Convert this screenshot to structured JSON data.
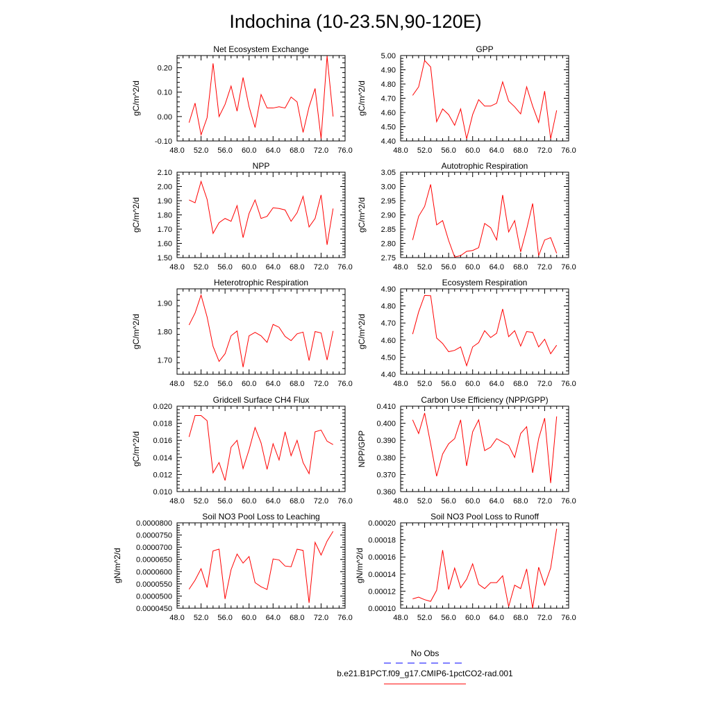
{
  "figure": {
    "title": "Indochina (10-23.5N,90-120E)"
  },
  "legend": {
    "entries": [
      {
        "label": "No Obs",
        "color": "#0000ff",
        "dash": "dashed"
      },
      {
        "label": "b.e21.B1PCT.f09_g17.CMIP6-1pctCO2-rad.001",
        "color": "#ff0000",
        "dash": "solid"
      }
    ]
  },
  "chart_data": [
    {
      "type": "line",
      "title": "Net Ecosystem Exchange",
      "xlabel": "",
      "ylabel": "gC/m^2/d",
      "xlim": [
        48,
        76
      ],
      "ylim": [
        -0.1,
        0.25
      ],
      "xticks": [
        "48.0",
        "52.0",
        "56.0",
        "60.0",
        "64.0",
        "68.0",
        "72.0",
        "76.0"
      ],
      "yticks": [
        "-0.10",
        "0.00",
        "0.10",
        "0.20"
      ],
      "grid": false,
      "series": [
        {
          "color": "#ff0000",
          "x": [
            50,
            51,
            52,
            53,
            54,
            55,
            56,
            57,
            58,
            59,
            60,
            61,
            62,
            63,
            64,
            65,
            66,
            67,
            68,
            69,
            70,
            71,
            72,
            73,
            74
          ],
          "y": [
            -0.025,
            0.055,
            -0.075,
            -0.005,
            0.218,
            0.0,
            0.05,
            0.125,
            0.022,
            0.16,
            0.04,
            -0.045,
            0.09,
            0.035,
            0.035,
            0.04,
            0.035,
            0.08,
            0.06,
            -0.065,
            0.04,
            0.115,
            -0.09,
            0.248,
            0.0
          ]
        }
      ]
    },
    {
      "type": "line",
      "title": "GPP",
      "xlabel": "",
      "ylabel": "gC/m^2/d",
      "xlim": [
        48,
        76
      ],
      "ylim": [
        4.4,
        5.0
      ],
      "xticks": [
        "48.0",
        "52.0",
        "56.0",
        "60.0",
        "64.0",
        "68.0",
        "72.0",
        "76.0"
      ],
      "yticks": [
        "4.40",
        "4.50",
        "4.60",
        "4.70",
        "4.80",
        "4.90",
        "5.00"
      ],
      "grid": false,
      "series": [
        {
          "color": "#ff0000",
          "x": [
            50,
            51,
            52,
            53,
            54,
            55,
            56,
            57,
            58,
            59,
            60,
            61,
            62,
            63,
            64,
            65,
            66,
            67,
            68,
            69,
            70,
            71,
            72,
            73,
            74
          ],
          "y": [
            4.72,
            4.78,
            4.965,
            4.92,
            4.535,
            4.625,
            4.585,
            4.51,
            4.625,
            4.415,
            4.585,
            4.69,
            4.645,
            4.645,
            4.665,
            4.815,
            4.68,
            4.64,
            4.59,
            4.78,
            4.645,
            4.53,
            4.75,
            4.415,
            4.615
          ]
        }
      ]
    },
    {
      "type": "line",
      "title": "NPP",
      "xlabel": "",
      "ylabel": "gC/m^2/d",
      "xlim": [
        48,
        76
      ],
      "ylim": [
        1.5,
        2.1
      ],
      "xticks": [
        "48.0",
        "52.0",
        "56.0",
        "60.0",
        "64.0",
        "68.0",
        "72.0",
        "76.0"
      ],
      "yticks": [
        "1.50",
        "1.60",
        "1.70",
        "1.80",
        "1.90",
        "2.00",
        "2.10"
      ],
      "grid": false,
      "series": [
        {
          "color": "#ff0000",
          "x": [
            50,
            51,
            52,
            53,
            54,
            55,
            56,
            57,
            58,
            59,
            60,
            61,
            62,
            63,
            64,
            65,
            66,
            67,
            68,
            69,
            70,
            71,
            72,
            73,
            74
          ],
          "y": [
            1.905,
            1.885,
            2.035,
            1.91,
            1.67,
            1.745,
            1.775,
            1.755,
            1.865,
            1.64,
            1.81,
            1.905,
            1.775,
            1.79,
            1.85,
            1.845,
            1.835,
            1.755,
            1.815,
            1.93,
            1.715,
            1.775,
            1.94,
            1.59,
            1.845
          ]
        }
      ]
    },
    {
      "type": "line",
      "title": "Autotrophic Respiration",
      "xlabel": "",
      "ylabel": "gC/m^2/d",
      "xlim": [
        48,
        76
      ],
      "ylim": [
        2.75,
        3.05
      ],
      "xticks": [
        "48.0",
        "52.0",
        "56.0",
        "60.0",
        "64.0",
        "68.0",
        "72.0",
        "76.0"
      ],
      "yticks": [
        "2.75",
        "2.80",
        "2.85",
        "2.90",
        "2.95",
        "3.00",
        "3.05"
      ],
      "grid": false,
      "series": [
        {
          "color": "#ff0000",
          "x": [
            50,
            51,
            52,
            53,
            54,
            55,
            56,
            57,
            58,
            59,
            60,
            61,
            62,
            63,
            64,
            65,
            66,
            67,
            68,
            69,
            70,
            71,
            72,
            73,
            74
          ],
          "y": [
            2.812,
            2.895,
            2.93,
            3.007,
            2.865,
            2.88,
            2.81,
            2.752,
            2.757,
            2.772,
            2.775,
            2.785,
            2.87,
            2.855,
            2.812,
            2.97,
            2.84,
            2.88,
            2.77,
            2.85,
            2.94,
            2.757,
            2.812,
            2.82,
            2.765
          ]
        }
      ]
    },
    {
      "type": "line",
      "title": "Heterotrophic Respiration",
      "xlabel": "",
      "ylabel": "gC/m^2/d",
      "xlim": [
        48,
        76
      ],
      "ylim": [
        1.65,
        1.95
      ],
      "xticks": [
        "48.0",
        "52.0",
        "56.0",
        "60.0",
        "64.0",
        "68.0",
        "72.0",
        "76.0"
      ],
      "yticks": [
        "1.70",
        "1.80",
        "1.90"
      ],
      "grid": false,
      "series": [
        {
          "color": "#ff0000",
          "x": [
            50,
            51,
            52,
            53,
            54,
            55,
            56,
            57,
            58,
            59,
            60,
            61,
            62,
            63,
            64,
            65,
            66,
            67,
            68,
            69,
            70,
            71,
            72,
            73,
            74
          ],
          "y": [
            1.823,
            1.865,
            1.928,
            1.852,
            1.748,
            1.695,
            1.722,
            1.785,
            1.802,
            1.675,
            1.785,
            1.797,
            1.785,
            1.762,
            1.825,
            1.815,
            1.783,
            1.768,
            1.792,
            1.798,
            1.698,
            1.8,
            1.795,
            1.7,
            1.802
          ]
        }
      ]
    },
    {
      "type": "line",
      "title": "Ecosystem Respiration",
      "xlabel": "",
      "ylabel": "gC/m^2/d",
      "xlim": [
        48,
        76
      ],
      "ylim": [
        4.4,
        4.9
      ],
      "xticks": [
        "48.0",
        "52.0",
        "56.0",
        "60.0",
        "64.0",
        "68.0",
        "72.0",
        "76.0"
      ],
      "yticks": [
        "4.40",
        "4.50",
        "4.60",
        "4.70",
        "4.80",
        "4.90"
      ],
      "grid": false,
      "series": [
        {
          "color": "#ff0000",
          "x": [
            50,
            51,
            52,
            53,
            54,
            55,
            56,
            57,
            58,
            59,
            60,
            61,
            62,
            63,
            64,
            65,
            66,
            67,
            68,
            69,
            70,
            71,
            72,
            73,
            74
          ],
          "y": [
            4.635,
            4.765,
            4.862,
            4.86,
            4.612,
            4.58,
            4.532,
            4.54,
            4.56,
            4.45,
            4.56,
            4.585,
            4.655,
            4.615,
            4.64,
            4.782,
            4.62,
            4.655,
            4.565,
            4.65,
            4.645,
            4.56,
            4.605,
            4.52,
            4.57
          ]
        }
      ]
    },
    {
      "type": "line",
      "title": "Gridcell Surface CH4 Flux",
      "xlabel": "",
      "ylabel": "gC/m^2/d",
      "xlim": [
        48,
        76
      ],
      "ylim": [
        0.01,
        0.02
      ],
      "xticks": [
        "48.0",
        "52.0",
        "56.0",
        "60.0",
        "64.0",
        "68.0",
        "72.0",
        "76.0"
      ],
      "yticks": [
        "0.010",
        "0.012",
        "0.014",
        "0.016",
        "0.018",
        "0.020"
      ],
      "grid": false,
      "series": [
        {
          "color": "#ff0000",
          "x": [
            50,
            51,
            52,
            53,
            54,
            55,
            56,
            57,
            58,
            59,
            60,
            61,
            62,
            63,
            64,
            65,
            66,
            67,
            68,
            69,
            70,
            71,
            72,
            73,
            74
          ],
          "y": [
            0.0164,
            0.0189,
            0.0189,
            0.0183,
            0.0122,
            0.0134,
            0.0113,
            0.0152,
            0.016,
            0.0127,
            0.0149,
            0.0175,
            0.0157,
            0.0126,
            0.0156,
            0.0137,
            0.017,
            0.0142,
            0.016,
            0.0134,
            0.0121,
            0.017,
            0.0172,
            0.0159,
            0.0155
          ]
        }
      ]
    },
    {
      "type": "line",
      "title": "Carbon Use Efficiency (NPP/GPP)",
      "xlabel": "",
      "ylabel": "NPP/GPP",
      "xlim": [
        48,
        76
      ],
      "ylim": [
        0.36,
        0.41
      ],
      "xticks": [
        "48.0",
        "52.0",
        "56.0",
        "60.0",
        "64.0",
        "68.0",
        "72.0",
        "76.0"
      ],
      "yticks": [
        "0.360",
        "0.370",
        "0.380",
        "0.390",
        "0.400",
        "0.410"
      ],
      "grid": false,
      "series": [
        {
          "color": "#ff0000",
          "x": [
            50,
            51,
            52,
            53,
            54,
            55,
            56,
            57,
            58,
            59,
            60,
            61,
            62,
            63,
            64,
            65,
            66,
            67,
            68,
            69,
            70,
            71,
            72,
            73,
            74
          ],
          "y": [
            0.402,
            0.394,
            0.406,
            0.388,
            0.369,
            0.382,
            0.388,
            0.391,
            0.402,
            0.375,
            0.395,
            0.402,
            0.384,
            0.386,
            0.391,
            0.389,
            0.387,
            0.38,
            0.394,
            0.398,
            0.371,
            0.391,
            0.403,
            0.365,
            0.404
          ]
        }
      ]
    },
    {
      "type": "line",
      "title": "Soil NO3 Pool Loss to Leaching",
      "xlabel": "",
      "ylabel": "gN/m^2/d",
      "xlim": [
        48,
        76
      ],
      "ylim": [
        4.5e-05,
        8e-05
      ],
      "xticks": [
        "48.0",
        "52.0",
        "56.0",
        "60.0",
        "64.0",
        "68.0",
        "72.0",
        "76.0"
      ],
      "yticks": [
        "0.0000450",
        "0.0000500",
        "0.0000550",
        "0.0000600",
        "0.0000650",
        "0.0000700",
        "0.0000750",
        "0.0000800"
      ],
      "grid": false,
      "series": [
        {
          "color": "#ff0000",
          "x": [
            50,
            51,
            52,
            53,
            54,
            55,
            56,
            57,
            58,
            59,
            60,
            61,
            62,
            63,
            64,
            65,
            66,
            67,
            68,
            69,
            70,
            71,
            72,
            73,
            74
          ],
          "y": [
            5.28e-05,
            5.65e-05,
            6.12e-05,
            5.35e-05,
            6.85e-05,
            6.92e-05,
            4.88e-05,
            6.08e-05,
            6.72e-05,
            6.35e-05,
            6.62e-05,
            5.55e-05,
            5.38e-05,
            5.27e-05,
            6.52e-05,
            6.48e-05,
            6.23e-05,
            6.2e-05,
            6.92e-05,
            6.87e-05,
            4.72e-05,
            7.2e-05,
            6.68e-05,
            7.25e-05,
            7.65e-05
          ]
        }
      ]
    },
    {
      "type": "line",
      "title": "Soil NO3 Pool Loss to Runoff",
      "xlabel": "",
      "ylabel": "gN/m^2/d",
      "xlim": [
        48,
        76
      ],
      "ylim": [
        0.0001,
        0.0002
      ],
      "xticks": [
        "48.0",
        "52.0",
        "56.0",
        "60.0",
        "64.0",
        "68.0",
        "72.0",
        "76.0"
      ],
      "yticks": [
        "0.00010",
        "0.00012",
        "0.00014",
        "0.00016",
        "0.00018",
        "0.00020"
      ],
      "grid": false,
      "series": [
        {
          "color": "#ff0000",
          "x": [
            50,
            51,
            52,
            53,
            54,
            55,
            56,
            57,
            58,
            59,
            60,
            61,
            62,
            63,
            64,
            65,
            66,
            67,
            68,
            69,
            70,
            71,
            72,
            73,
            74
          ],
          "y": [
            0.000111,
            0.000113,
            0.00011,
            0.000108,
            0.000121,
            0.000168,
            0.000122,
            0.000147,
            0.000124,
            0.000134,
            0.000152,
            0.000128,
            0.000123,
            0.00013,
            0.00013,
            0.000138,
            0.000102,
            0.000127,
            0.000123,
            0.000146,
            0.0001,
            0.000148,
            0.000127,
            0.000147,
            0.000193
          ]
        }
      ]
    }
  ]
}
